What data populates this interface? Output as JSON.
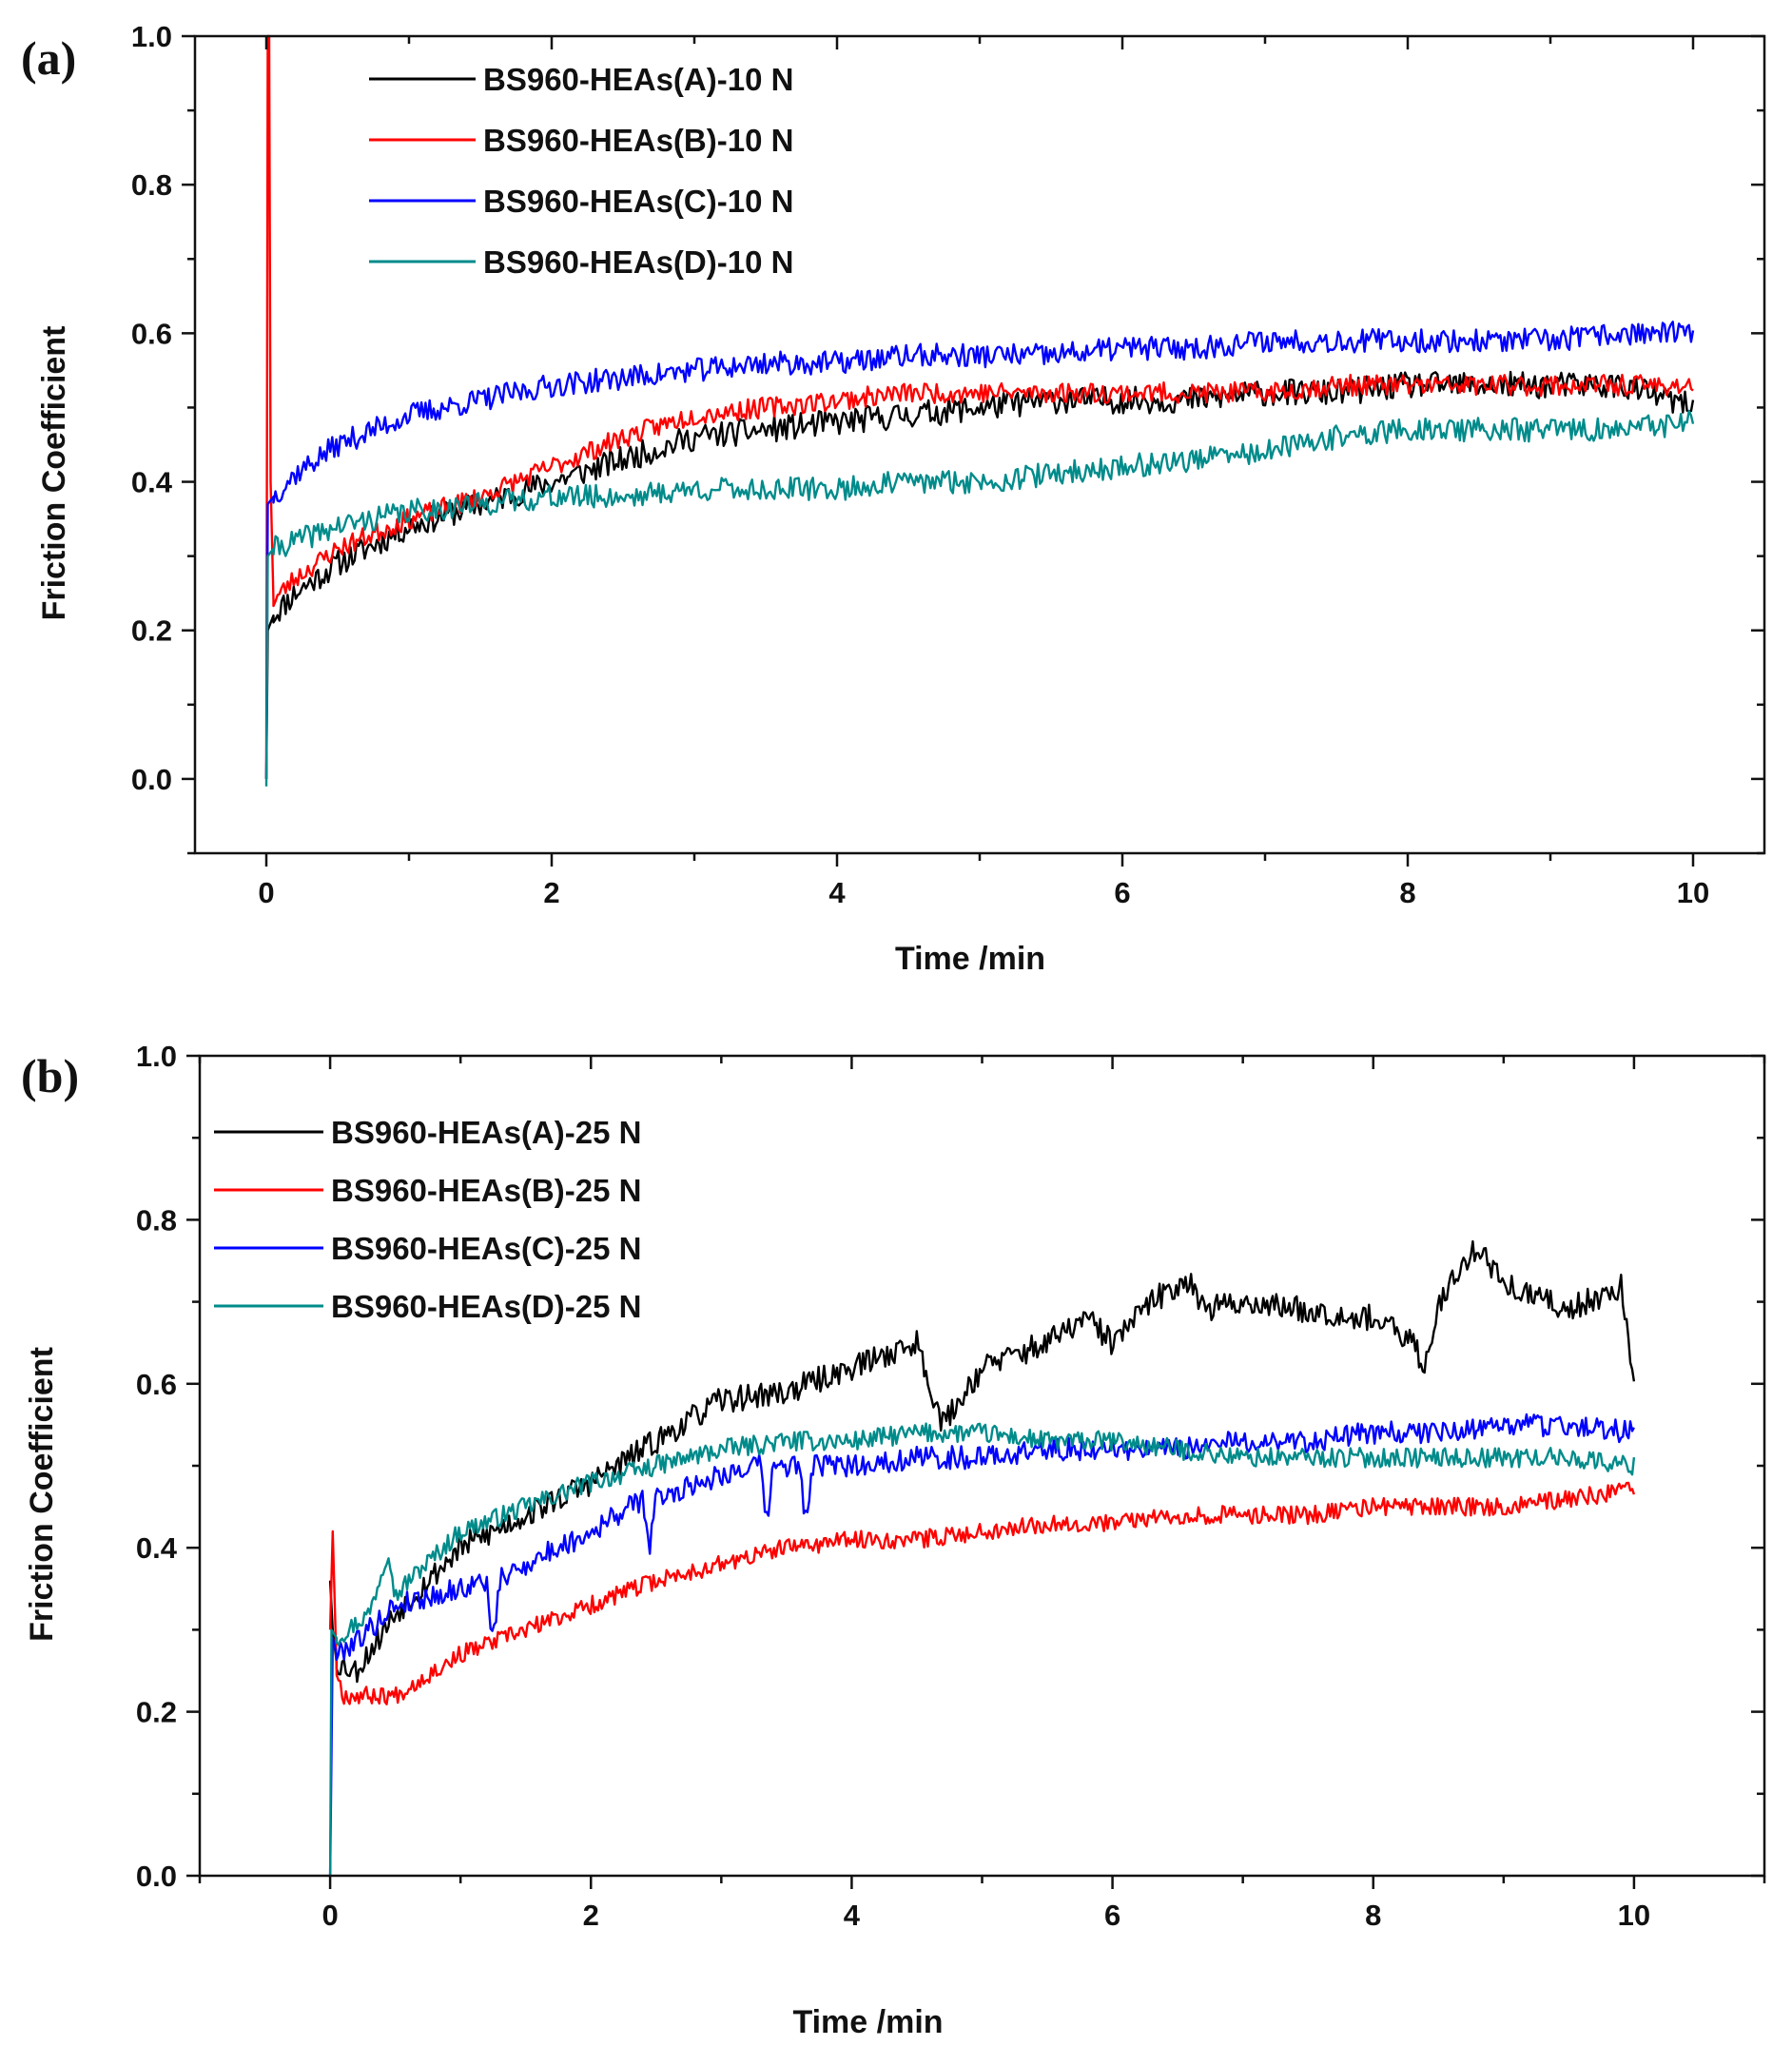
{
  "chart_data": [
    {
      "type": "line",
      "panel_label": "(a)",
      "xlabel": "Time /min",
      "ylabel": "Friction Coefficient",
      "xlim": [
        -0.5,
        10.5
      ],
      "ylim": [
        -0.1,
        1.0
      ],
      "xticks": [
        "0",
        "2",
        "4",
        "6",
        "8",
        "10"
      ],
      "yticks": [
        "0.0",
        "0.2",
        "0.4",
        "0.6",
        "0.8",
        "1.0"
      ],
      "legend_position": "top-left",
      "series": [
        {
          "name": "BS960-HEAs(A)-10 N",
          "color": "#000000",
          "noise": 0.018,
          "seed": 11,
          "x": [
            0,
            0.01,
            0.05,
            0.2,
            0.5,
            1,
            1.5,
            2,
            2.5,
            3,
            3.5,
            4,
            4.5,
            5,
            5.5,
            6,
            6.5,
            7,
            7.5,
            8,
            8.5,
            9,
            9.5,
            10
          ],
          "y": [
            0.0,
            0.2,
            0.22,
            0.25,
            0.29,
            0.34,
            0.37,
            0.4,
            0.43,
            0.46,
            0.47,
            0.48,
            0.49,
            0.5,
            0.51,
            0.51,
            0.51,
            0.52,
            0.52,
            0.53,
            0.53,
            0.53,
            0.53,
            0.5
          ]
        },
        {
          "name": "BS960-HEAs(B)-10 N",
          "color": "#ff0000",
          "noise": 0.014,
          "seed": 23,
          "x": [
            0,
            0.01,
            0.02,
            0.03,
            0.05,
            0.2,
            0.5,
            1,
            1.5,
            2,
            2.5,
            3,
            3.5,
            4,
            4.5,
            5,
            5.5,
            6,
            6.5,
            7,
            7.5,
            8,
            8.5,
            9,
            9.5,
            10
          ],
          "y": [
            0.0,
            1.0,
            1.0,
            0.4,
            0.24,
            0.27,
            0.31,
            0.35,
            0.38,
            0.42,
            0.46,
            0.49,
            0.5,
            0.51,
            0.52,
            0.52,
            0.52,
            0.52,
            0.52,
            0.52,
            0.53,
            0.53,
            0.53,
            0.53,
            0.53,
            0.53
          ]
        },
        {
          "name": "BS960-HEAs(C)-10 N",
          "color": "#0000ff",
          "noise": 0.016,
          "seed": 37,
          "x": [
            0,
            0.01,
            0.05,
            0.2,
            0.5,
            1,
            1.5,
            2,
            2.5,
            3,
            3.5,
            4,
            4.5,
            5,
            5.5,
            6,
            6.5,
            7,
            7.5,
            8,
            8.5,
            9,
            9.5,
            10
          ],
          "y": [
            0.0,
            0.37,
            0.38,
            0.41,
            0.45,
            0.49,
            0.51,
            0.53,
            0.54,
            0.55,
            0.56,
            0.56,
            0.57,
            0.57,
            0.57,
            0.58,
            0.58,
            0.59,
            0.59,
            0.59,
            0.59,
            0.59,
            0.6,
            0.6
          ]
        },
        {
          "name": "BS960-HEAs(D)-10 N",
          "color": "#008b8b",
          "noise": 0.016,
          "seed": 41,
          "x": [
            0,
            0.01,
            0.05,
            0.2,
            0.5,
            1,
            1.5,
            2,
            2.5,
            3,
            3.5,
            4,
            4.5,
            5,
            5.5,
            6,
            6.5,
            7,
            7.5,
            8,
            8.5,
            9,
            9.5,
            10
          ],
          "y": [
            -0.01,
            0.3,
            0.31,
            0.32,
            0.34,
            0.36,
            0.37,
            0.38,
            0.38,
            0.39,
            0.39,
            0.39,
            0.4,
            0.4,
            0.41,
            0.42,
            0.43,
            0.44,
            0.46,
            0.47,
            0.47,
            0.47,
            0.47,
            0.48
          ]
        }
      ]
    },
    {
      "type": "line",
      "panel_label": "(b)",
      "xlabel": "Time /min",
      "ylabel": "Friction Coefficient",
      "xlim": [
        -1,
        11
      ],
      "ylim": [
        0.0,
        1.0
      ],
      "xticks": [
        "0",
        "2",
        "4",
        "6",
        "8",
        "10"
      ],
      "yticks": [
        "0.0",
        "0.2",
        "0.4",
        "0.6",
        "0.8",
        "1.0"
      ],
      "legend_position": "top-left",
      "series": [
        {
          "name": "BS960-HEAs(A)-25 N",
          "color": "#000000",
          "noise": 0.016,
          "seed": 53,
          "x": [
            0,
            0.02,
            0.05,
            0.2,
            0.5,
            1,
            1.5,
            2,
            2.5,
            3,
            3.5,
            4,
            4.5,
            4.7,
            5,
            5.5,
            5.8,
            6,
            6.3,
            6.6,
            6.7,
            7,
            7.5,
            8,
            8.3,
            8.4,
            8.5,
            8.8,
            9,
            9.5,
            9.9,
            10
          ],
          "y": [
            0.36,
            0.3,
            0.26,
            0.25,
            0.32,
            0.4,
            0.44,
            0.48,
            0.53,
            0.58,
            0.59,
            0.62,
            0.65,
            0.55,
            0.62,
            0.65,
            0.68,
            0.65,
            0.7,
            0.73,
            0.69,
            0.7,
            0.69,
            0.68,
            0.65,
            0.62,
            0.7,
            0.77,
            0.72,
            0.69,
            0.72,
            0.59
          ]
        },
        {
          "name": "BS960-HEAs(B)-25 N",
          "color": "#ff0000",
          "noise": 0.011,
          "seed": 67,
          "x": [
            0,
            0.02,
            0.05,
            0.1,
            0.5,
            1,
            1.5,
            2,
            2.5,
            3,
            3.5,
            4,
            4.5,
            5,
            5.5,
            6,
            6.5,
            7,
            7.5,
            8,
            8.5,
            9,
            9.5,
            10
          ],
          "y": [
            0.3,
            0.42,
            0.25,
            0.22,
            0.22,
            0.27,
            0.3,
            0.33,
            0.36,
            0.38,
            0.4,
            0.41,
            0.41,
            0.42,
            0.43,
            0.43,
            0.44,
            0.44,
            0.44,
            0.45,
            0.45,
            0.45,
            0.46,
            0.47
          ]
        },
        {
          "name": "BS960-HEAs(C)-25 N",
          "color": "#0000ff",
          "noise": 0.014,
          "seed": 79,
          "x": [
            0,
            0.02,
            0.05,
            0.3,
            0.5,
            1,
            1.2,
            1.25,
            1.3,
            1.5,
            2,
            2.4,
            2.45,
            2.5,
            3,
            3.3,
            3.35,
            3.4,
            3.6,
            3.65,
            3.7,
            4,
            4.5,
            5,
            5.5,
            6,
            6.5,
            7,
            7.5,
            8,
            8.5,
            9,
            9.5,
            10
          ],
          "y": [
            0.0,
            0.29,
            0.27,
            0.3,
            0.33,
            0.35,
            0.36,
            0.28,
            0.36,
            0.38,
            0.42,
            0.46,
            0.4,
            0.46,
            0.49,
            0.5,
            0.43,
            0.5,
            0.5,
            0.43,
            0.5,
            0.5,
            0.51,
            0.51,
            0.52,
            0.52,
            0.52,
            0.53,
            0.53,
            0.54,
            0.54,
            0.55,
            0.55,
            0.54
          ]
        },
        {
          "name": "BS960-HEAs(D)-25 N",
          "color": "#008b8b",
          "noise": 0.012,
          "seed": 97,
          "x": [
            0,
            0.01,
            0.05,
            0.3,
            0.45,
            0.5,
            0.6,
            1,
            1.5,
            2,
            2.5,
            3,
            3.5,
            4,
            4.5,
            5,
            5.5,
            6,
            6.5,
            7,
            7.5,
            8,
            8.5,
            9,
            9.5,
            10
          ],
          "y": [
            0.0,
            0.3,
            0.29,
            0.32,
            0.4,
            0.34,
            0.36,
            0.42,
            0.45,
            0.48,
            0.5,
            0.52,
            0.53,
            0.53,
            0.54,
            0.54,
            0.53,
            0.53,
            0.52,
            0.51,
            0.51,
            0.51,
            0.51,
            0.51,
            0.51,
            0.5
          ]
        }
      ]
    }
  ]
}
